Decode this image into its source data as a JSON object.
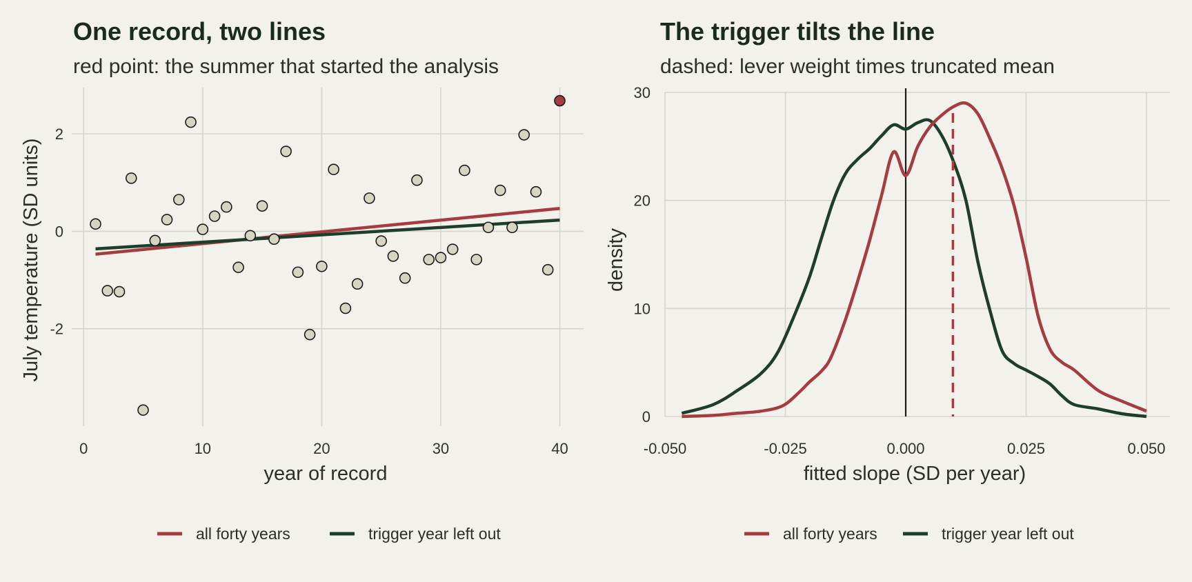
{
  "colors": {
    "full": "#a53d40",
    "drop": "#1e3d2b",
    "point_fill": "#d6d5c3",
    "trigger_fill": "#a53d40",
    "grid": "#d6d5cb",
    "background": "#f2f1eb"
  },
  "chart_data": [
    {
      "type": "scatter",
      "title": "One record, two lines",
      "subtitle": "red point: the summer that started the analysis",
      "xlabel": "year of record",
      "ylabel": "July temperature (SD units)",
      "xlim": [
        -1,
        42
      ],
      "ylim": [
        -4.0,
        2.95
      ],
      "xticks": [
        0,
        10,
        20,
        30,
        40
      ],
      "xtick_labels": [
        "0",
        "10",
        "20",
        "30",
        "40"
      ],
      "yticks": [
        -2,
        0,
        2
      ],
      "ytick_labels": [
        "-2",
        "0",
        "2"
      ],
      "grid": true,
      "legend_position": "bottom",
      "points": {
        "x": [
          1,
          2,
          3,
          4,
          5,
          6,
          7,
          8,
          9,
          10,
          11,
          12,
          13,
          14,
          15,
          16,
          17,
          18,
          19,
          20,
          21,
          22,
          23,
          24,
          25,
          26,
          27,
          28,
          29,
          30,
          31,
          32,
          33,
          34,
          35,
          36,
          37,
          38,
          39,
          40
        ],
        "y": [
          0.15,
          -1.22,
          -1.24,
          1.09,
          -3.67,
          -0.19,
          0.24,
          0.65,
          2.24,
          0.04,
          0.31,
          0.5,
          -0.74,
          -0.09,
          0.52,
          -0.16,
          1.64,
          -0.84,
          -2.12,
          -0.72,
          1.27,
          -1.58,
          -1.08,
          0.68,
          -0.2,
          -0.51,
          -0.96,
          1.05,
          -0.58,
          -0.54,
          -0.37,
          1.25,
          -0.58,
          0.08,
          0.84,
          0.08,
          1.98,
          0.81,
          -0.79,
          2.68
        ]
      },
      "trigger_point": {
        "x": 40,
        "y": 2.68
      },
      "series": [
        {
          "name": "all forty years",
          "x": [
            1,
            40
          ],
          "y": [
            -0.47,
            0.47
          ]
        },
        {
          "name": "trigger year left out",
          "x": [
            1,
            40
          ],
          "y": [
            -0.36,
            0.23
          ]
        }
      ]
    },
    {
      "type": "line",
      "title": "The trigger tilts the line",
      "subtitle": "dashed: lever weight times truncated mean",
      "xlabel": "fitted slope (SD per year)",
      "ylabel": "density",
      "xlim": [
        -0.05,
        0.05
      ],
      "ylim": [
        0,
        30
      ],
      "xticks": [
        -0.05,
        -0.025,
        0,
        0.025,
        0.05
      ],
      "xtick_labels": [
        "-0.050",
        "-0.025",
        "0.000",
        "0.025",
        "0.050"
      ],
      "yticks": [
        0,
        10,
        20,
        30
      ],
      "ytick_labels": [
        "0",
        "10",
        "20",
        "30"
      ],
      "grid": true,
      "legend_position": "bottom",
      "vline_zero": 0,
      "vline_dashed": 0.0098,
      "series": [
        {
          "name": "all forty years",
          "x": [
            -0.0465,
            -0.04,
            -0.035,
            -0.03,
            -0.0255,
            -0.022,
            -0.02,
            -0.0175,
            -0.0155,
            -0.0125,
            -0.01,
            -0.0075,
            -0.005,
            -0.0025,
            0,
            0.0025,
            0.005,
            0.0075,
            0.01,
            0.0125,
            0.015,
            0.0175,
            0.02,
            0.0225,
            0.025,
            0.0275,
            0.03,
            0.0325,
            0.035,
            0.04,
            0.045,
            0.05
          ],
          "y": [
            0,
            0.1,
            0.3,
            0.5,
            1,
            2.3,
            3.2,
            4.2,
            5.5,
            9,
            12.5,
            16.3,
            20.5,
            24.5,
            22.3,
            25,
            26.8,
            27.9,
            28.7,
            29,
            28,
            25.7,
            23,
            19.5,
            14.7,
            9.3,
            6.2,
            5,
            4.3,
            2.4,
            1.4,
            0.5
          ]
        },
        {
          "name": "trigger year left out",
          "x": [
            -0.0465,
            -0.04,
            -0.035,
            -0.03,
            -0.0265,
            -0.023,
            -0.02,
            -0.0175,
            -0.015,
            -0.0125,
            -0.01,
            -0.0075,
            -0.005,
            -0.0025,
            0,
            0.0025,
            0.005,
            0.0075,
            0.01,
            0.0125,
            0.015,
            0.0175,
            0.02,
            0.0225,
            0.025,
            0.0275,
            0.03,
            0.0325,
            0.035,
            0.04,
            0.045,
            0.05
          ],
          "y": [
            0.3,
            1.1,
            2.4,
            4,
            6,
            9.5,
            12.9,
            16.5,
            20,
            22.5,
            23.8,
            24.8,
            26,
            27,
            26.6,
            27.2,
            27.4,
            26,
            23.5,
            20,
            14.3,
            9.8,
            6.1,
            4.9,
            4.3,
            3.7,
            3,
            1.9,
            1.1,
            0.7,
            0.25,
            0
          ]
        }
      ]
    }
  ]
}
